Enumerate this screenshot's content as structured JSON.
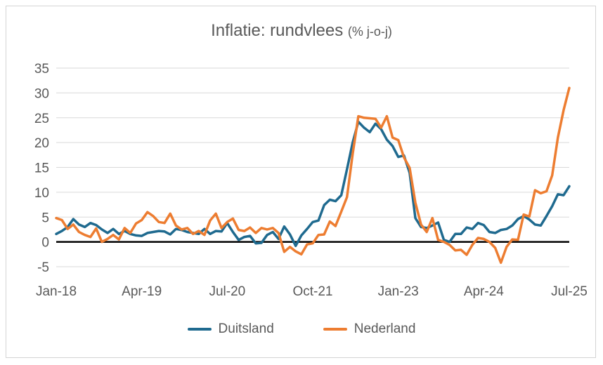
{
  "title": "Inflatie: rundvlees",
  "title_unit": "(% j-o-j)",
  "chart_data": {
    "type": "line",
    "title": "Inflatie: rundvlees (% j-o-j)",
    "ylim": [
      -5,
      35
    ],
    "yticks": [
      35,
      30,
      25,
      20,
      15,
      10,
      5,
      0,
      -5
    ],
    "xtick_labels": [
      "Jan-18",
      "Apr-19",
      "Jul-20",
      "Oct-21",
      "Jan-23",
      "Apr-24",
      "Jul-25"
    ],
    "xtick_index": [
      0,
      15,
      30,
      45,
      60,
      75,
      90
    ],
    "grid": true,
    "legend_position": "bottom",
    "series": [
      {
        "name": "Duitsland",
        "color": "#1f6a8f",
        "values": [
          1.6,
          2.2,
          3.0,
          4.6,
          3.5,
          3.0,
          3.8,
          3.4,
          2.5,
          1.8,
          2.6,
          1.6,
          2.2,
          1.6,
          1.3,
          1.2,
          1.8,
          2.0,
          2.2,
          2.1,
          1.5,
          2.6,
          2.4,
          2.0,
          1.8,
          1.6,
          2.6,
          1.6,
          2.2,
          2.1,
          3.8,
          2.0,
          0.4,
          1.0,
          1.2,
          -0.3,
          -0.2,
          1.4,
          2.0,
          0.6,
          3.1,
          1.5,
          -0.8,
          1.3,
          2.6,
          4.0,
          4.3,
          7.4,
          8.5,
          8.2,
          9.4,
          14.6,
          20.0,
          24.2,
          23.0,
          22.1,
          23.8,
          22.7,
          20.6,
          19.3,
          17.1,
          17.4,
          13.9,
          4.8,
          3.0,
          2.8,
          3.3,
          3.9,
          0.4,
          0.0,
          1.6,
          1.6,
          2.9,
          2.6,
          3.8,
          3.4,
          2.0,
          1.8,
          2.4,
          2.6,
          3.3,
          4.6,
          5.2,
          4.5,
          3.5,
          3.3,
          5.2,
          7.2,
          9.6,
          9.4,
          11.2
        ]
      },
      {
        "name": "Nederland",
        "color": "#ed7d31",
        "values": [
          4.8,
          4.4,
          2.6,
          3.5,
          2.0,
          1.4,
          1.0,
          2.7,
          0.0,
          0.6,
          1.4,
          0.5,
          2.8,
          1.8,
          3.7,
          4.4,
          6.0,
          5.2,
          4.0,
          3.8,
          5.7,
          3.3,
          2.5,
          2.8,
          1.6,
          2.2,
          1.4,
          4.3,
          5.7,
          2.8,
          4.0,
          4.7,
          2.4,
          2.2,
          2.9,
          1.8,
          2.8,
          2.5,
          2.8,
          1.8,
          -2.0,
          -1.0,
          -1.9,
          -2.5,
          -0.5,
          -0.3,
          1.4,
          1.5,
          4.1,
          3.2,
          6.1,
          9.0,
          17.7,
          25.3,
          25.0,
          24.9,
          24.8,
          23.0,
          25.3,
          21.0,
          20.5,
          17.0,
          14.9,
          7.9,
          3.5,
          2.0,
          4.8,
          0.4,
          0.0,
          -0.6,
          -1.7,
          -1.6,
          -2.6,
          -0.6,
          0.8,
          0.6,
          0.0,
          -1.2,
          -4.2,
          -1.0,
          0.5,
          0.4,
          5.5,
          5.1,
          10.4,
          9.8,
          10.2,
          13.4,
          21.0,
          26.5,
          31.0
        ]
      }
    ]
  }
}
